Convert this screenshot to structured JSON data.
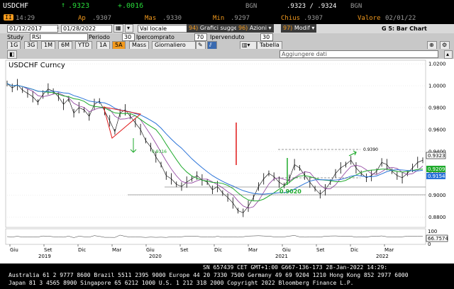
{
  "header": {
    "ticker": "USDCHF",
    "last_price": ".9323",
    "change": "+.0016",
    "bid_label": "BGN",
    "bid_ask": ".9323 / .9324",
    "bid_label2": "BGN",
    "time_label": "II",
    "time": "14:29",
    "open_label": "Ap",
    "open": ".9307",
    "high_label": "Mas",
    "high": ".9330",
    "low_label": "Min",
    "low": ".9297",
    "close_label": "Chius",
    "close": ".9307",
    "value_label": "Valore",
    "value_date": "02/01/22",
    "up_arrow": "↑"
  },
  "toolbar": {
    "start_date": "01/12/2017",
    "end_date": "01/28/2022",
    "currency": "Val locale",
    "suggested_num": "94)",
    "suggested": "Grafici suggeriti",
    "actions_num": "96)",
    "actions": "Azioni",
    "modify_num": "97)",
    "modify": "Modif",
    "chart_title": "G 5: Bar Chart"
  },
  "study": {
    "label": "Study",
    "value": "RSI",
    "period_label": "Periodo",
    "period": "30",
    "overbought_label": "Ipercomprato",
    "overbought": "70",
    "oversold_label": "Ipervenduto",
    "oversold": "30"
  },
  "ranges": {
    "buttons": [
      "1G",
      "3G",
      "1M",
      "6M",
      "YTD",
      "1A",
      "5A",
      "Mass",
      "Giornaliero"
    ],
    "selected": "5A",
    "table": "Tabella",
    "add_data": "Aggiungere dati"
  },
  "chart_data": {
    "type": "line",
    "title": "USDCHF Curncy",
    "y_ticks": [
      "1.0200",
      "1.0000",
      "0.9800",
      "0.9600",
      "0.9400",
      "0.9200",
      "0.9000",
      "0.8800"
    ],
    "ylim": [
      0.872,
      1.022
    ],
    "x_ticks": [
      "Giu",
      "Set",
      "Dic",
      "Mar",
      "Giu",
      "Set",
      "Dic",
      "Mar",
      "Giu",
      "Set",
      "Dic",
      "Mar"
    ],
    "year_ticks": [
      "2019",
      "2020",
      "2021",
      "2022"
    ],
    "annotations": [
      "0.9020",
      "0.9316",
      "0.9390"
    ],
    "last_label": "0.9323",
    "ma1_label": "0.9209",
    "ma2_label": "0.9154",
    "rsi_labels": [
      "100",
      "0"
    ],
    "rsi_value": "66.7574",
    "price": {
      "x": [
        0,
        6,
        12,
        18,
        24,
        30,
        36,
        42,
        48,
        54,
        60,
        66,
        72,
        78,
        84,
        90,
        96,
        102,
        108,
        114,
        120,
        126,
        132,
        138,
        144,
        150,
        156,
        162,
        168,
        174,
        180,
        186,
        192,
        198,
        204,
        210,
        216,
        222,
        228,
        234,
        240,
        246,
        252,
        258,
        264,
        270,
        276,
        282,
        288,
        294,
        300,
        306,
        312,
        318,
        324,
        330,
        336,
        342,
        348,
        354,
        360,
        366,
        372,
        378,
        384,
        390,
        396,
        402,
        408,
        414,
        420,
        426,
        432,
        438,
        444,
        450,
        456,
        462,
        468,
        474,
        480,
        486
      ],
      "y": [
        1.002,
        0.998,
        1.001,
        0.996,
        0.993,
        0.99,
        0.985,
        0.992,
        0.997,
        0.995,
        0.99,
        0.983,
        0.988,
        0.975,
        0.98,
        0.978,
        0.972,
        0.983,
        0.986,
        0.977,
        0.968,
        0.958,
        0.975,
        0.978,
        0.972,
        0.966,
        0.96,
        0.95,
        0.944,
        0.935,
        0.928,
        0.918,
        0.915,
        0.91,
        0.908,
        0.912,
        0.915,
        0.918,
        0.914,
        0.912,
        0.905,
        0.908,
        0.902,
        0.898,
        0.893,
        0.886,
        0.884,
        0.89,
        0.898,
        0.908,
        0.915,
        0.92,
        0.917,
        0.912,
        0.909,
        0.915,
        0.928,
        0.925,
        0.918,
        0.912,
        0.906,
        0.901,
        0.905,
        0.912,
        0.92,
        0.925,
        0.928,
        0.932,
        0.925,
        0.92,
        0.916,
        0.918,
        0.922,
        0.93,
        0.928,
        0.922,
        0.918,
        0.916,
        0.92,
        0.925,
        0.93,
        0.932
      ]
    }
  },
  "footer": {
    "line1": "SN 657439 CET  GMT+1:00 G667-136-173 28-Jan-2022 14:29:",
    "line2": "Australia 61 2 9777 8600 Brazil 5511 2395 9000 Europe 44 20 7330 7500 Germany 49 69 9204 1210 Hong Kong 852 2977 6000",
    "line3": "Japan 81 3 4565 8900       Singapore 65 6212 1000        U.S. 1 212 318 2000        Copyright 2022 Bloomberg Finance L.P."
  },
  "colors": {
    "orange": "#f39a1e",
    "green": "#28d93a",
    "ma_green": "#1faa2c",
    "ma_blue": "#2a73d8",
    "ma_purple": "#8b3a9a",
    "red": "#e01818"
  }
}
